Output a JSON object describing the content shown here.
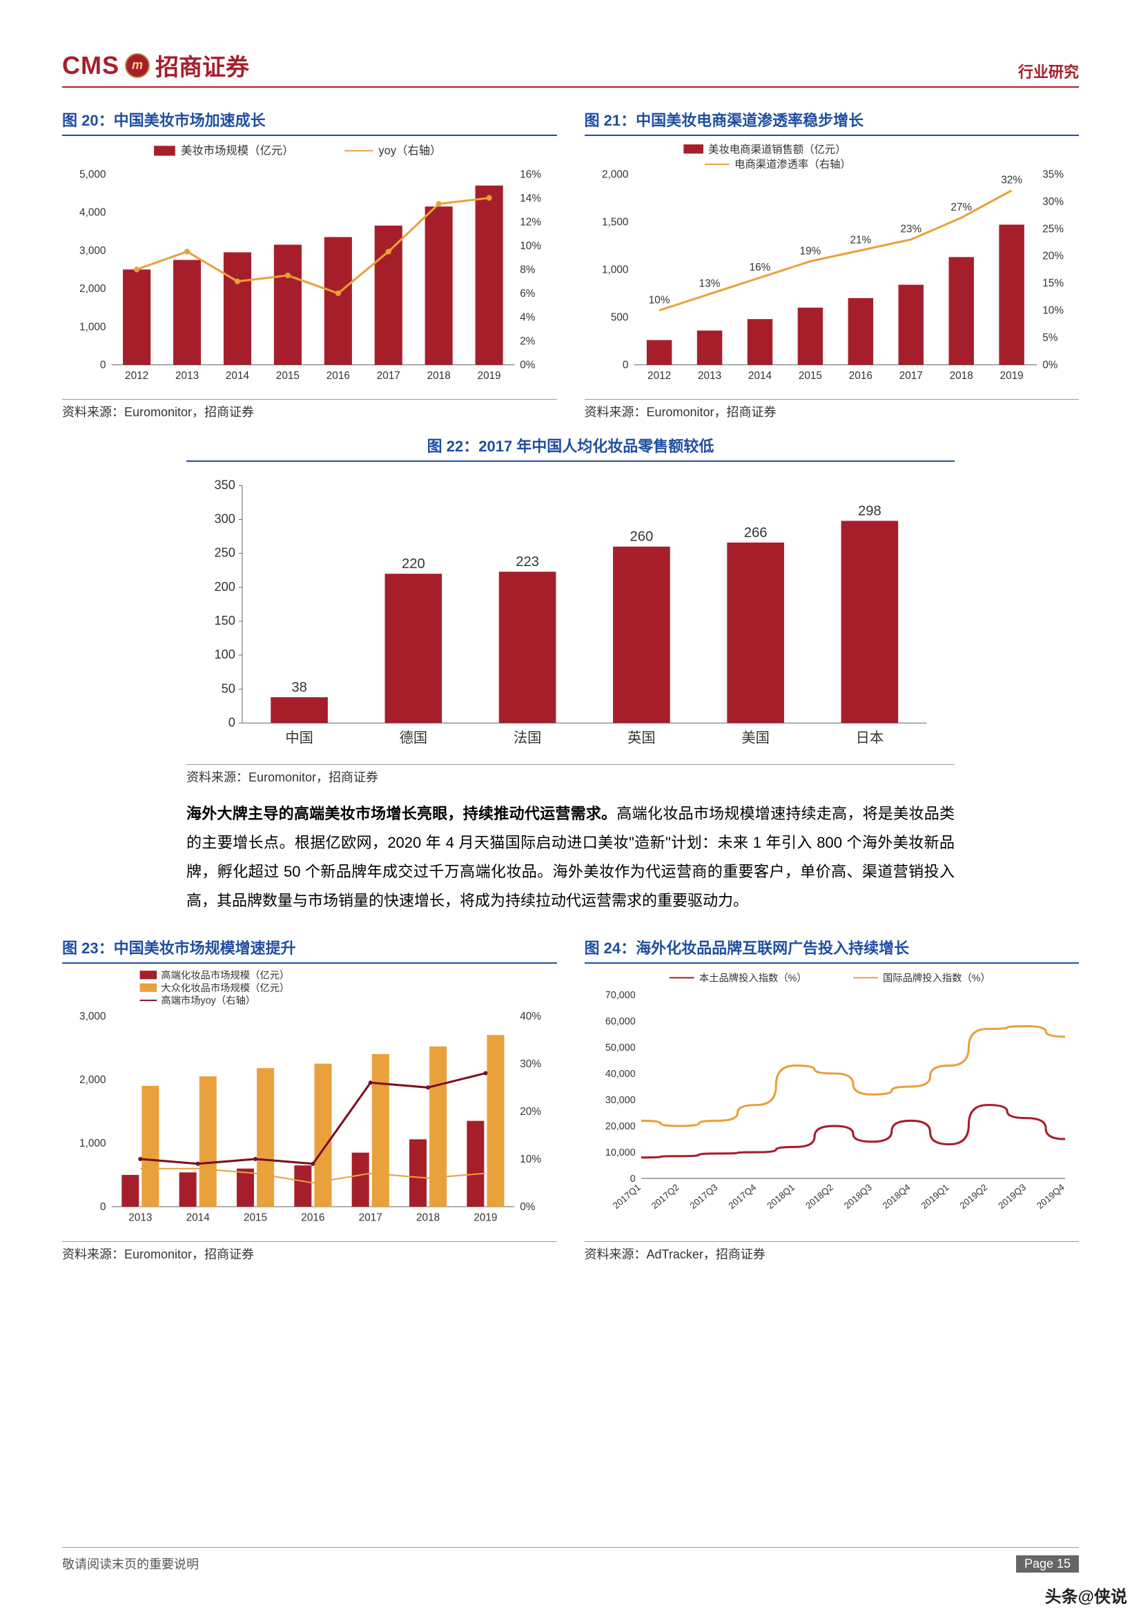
{
  "header": {
    "logo_cms": "CMS",
    "logo_ball": "m",
    "logo_zh": "招商证券",
    "right": "行业研究"
  },
  "footer": {
    "note": "敬请阅读末页的重要说明",
    "page": "Page  15",
    "watermark": "头条@侠说"
  },
  "body": {
    "bold": "海外大牌主导的高端美妆市场增长亮眼，持续推动代运营需求。",
    "rest": "高端化妆品市场规模增速持续走高，将是美妆品类的主要增长点。根据亿欧网，2020 年 4 月天猫国际启动进口美妆\"造新\"计划：未来 1 年引入 800 个海外美妆新品牌，孵化超过 50 个新品牌年成交过千万高端化妆品。海外美妆作为代运营商的重要客户，单价高、渠道营销投入高，其品牌数量与市场销量的快速增长，将成为持续拉动代运营需求的重要驱动力。"
  },
  "chart20": {
    "title": "图 20：中国美妆市场加速成长",
    "source": "资料来源：Euromonitor，招商证券",
    "legend_bar": "美妆市场规模（亿元）",
    "legend_line": "yoy（右轴）",
    "colors": {
      "bar": "#a71e2b",
      "line": "#e9a13b",
      "axis": "#666",
      "text": "#333"
    },
    "categories": [
      "2012",
      "2013",
      "2014",
      "2015",
      "2016",
      "2017",
      "2018",
      "2019"
    ],
    "bars": [
      2500,
      2750,
      2950,
      3150,
      3350,
      3650,
      4150,
      4700
    ],
    "line_pct": [
      8,
      9.5,
      7,
      7.5,
      6,
      9.5,
      13.5,
      14
    ],
    "ylim": [
      0,
      5000
    ],
    "ystep": 1000,
    "y2lim": [
      0,
      16
    ],
    "y2step": 2
  },
  "chart21": {
    "title": "图 21：中国美妆电商渠道渗透率稳步增长",
    "source": "资料来源：Euromonitor，招商证券",
    "legend_bar": "美妆电商渠道销售额（亿元）",
    "legend_line": "电商渠道渗透率（右轴）",
    "colors": {
      "bar": "#a71e2b",
      "line": "#e9a13b",
      "axis": "#666",
      "text": "#333"
    },
    "categories": [
      "2012",
      "2013",
      "2014",
      "2015",
      "2016",
      "2017",
      "2018",
      "2019"
    ],
    "bars": [
      260,
      360,
      480,
      600,
      700,
      840,
      1130,
      1470
    ],
    "line_pct": [
      10,
      13,
      16,
      19,
      21,
      23,
      27,
      32
    ],
    "line_labels": [
      "10%",
      "13%",
      "16%",
      "19%",
      "21%",
      "23%",
      "27%",
      "32%"
    ],
    "ylim": [
      0,
      2000
    ],
    "ystep": 500,
    "y2lim": [
      0,
      35
    ],
    "y2step": 5
  },
  "chart22": {
    "title": "图 22：2017 年中国人均化妆品零售额较低",
    "source": "资料来源：Euromonitor，招商证券",
    "colors": {
      "bar": "#a71e2b",
      "axis": "#666",
      "text": "#333"
    },
    "categories": [
      "中国",
      "德国",
      "法国",
      "英国",
      "美国",
      "日本"
    ],
    "values": [
      38,
      220,
      223,
      260,
      266,
      298
    ],
    "ylim": [
      0,
      350
    ],
    "ystep": 50
  },
  "chart23": {
    "title": "图 23：中国美妆市场规模增速提升",
    "source": "资料来源：Euromonitor，招商证券",
    "legend_bar1": "高端化妆品市场规模（亿元）",
    "legend_bar2": "大众化妆品市场规模（亿元）",
    "legend_line": "高端市场yoy（右轴）",
    "colors": {
      "bar1": "#a71e2b",
      "bar2": "#e9a13b",
      "line": "#7a1020",
      "line2": "#e9a13b",
      "axis": "#666",
      "text": "#333"
    },
    "categories": [
      "2013",
      "2014",
      "2015",
      "2016",
      "2017",
      "2018",
      "2019"
    ],
    "bar1": [
      500,
      540,
      600,
      650,
      850,
      1060,
      1350
    ],
    "bar2": [
      1900,
      2050,
      2180,
      2250,
      2400,
      2520,
      2700
    ],
    "line_pct": [
      10,
      9,
      10,
      9,
      26,
      25,
      28
    ],
    "line2_pct": [
      8,
      8,
      7,
      5,
      7,
      6,
      7
    ],
    "ylim": [
      0,
      3000
    ],
    "ystep": 1000,
    "y2lim": [
      0,
      40
    ],
    "y2step": 10
  },
  "chart24": {
    "title": "图 24：海外化妆品品牌互联网广告投入持续增长",
    "source": "资料来源：AdTracker，招商证券",
    "legend1": "本土品牌投入指数（%）",
    "legend2": "国际品牌投入指数（%）",
    "colors": {
      "line1": "#a71e2b",
      "line2": "#e9a13b",
      "axis": "#666",
      "text": "#333"
    },
    "categories": [
      "2017Q1",
      "2017Q2",
      "2017Q3",
      "2017Q4",
      "2018Q1",
      "2018Q2",
      "2018Q3",
      "2018Q4",
      "2019Q1",
      "2019Q2",
      "2019Q3",
      "2019Q4"
    ],
    "line1": [
      8000,
      8500,
      9500,
      10000,
      12000,
      20000,
      14000,
      22000,
      13000,
      28000,
      23000,
      15000
    ],
    "line2": [
      22000,
      20000,
      22000,
      28000,
      43000,
      40000,
      32000,
      35000,
      43000,
      57000,
      58000,
      54000
    ],
    "ylim": [
      0,
      70000
    ],
    "ystep": 10000
  }
}
